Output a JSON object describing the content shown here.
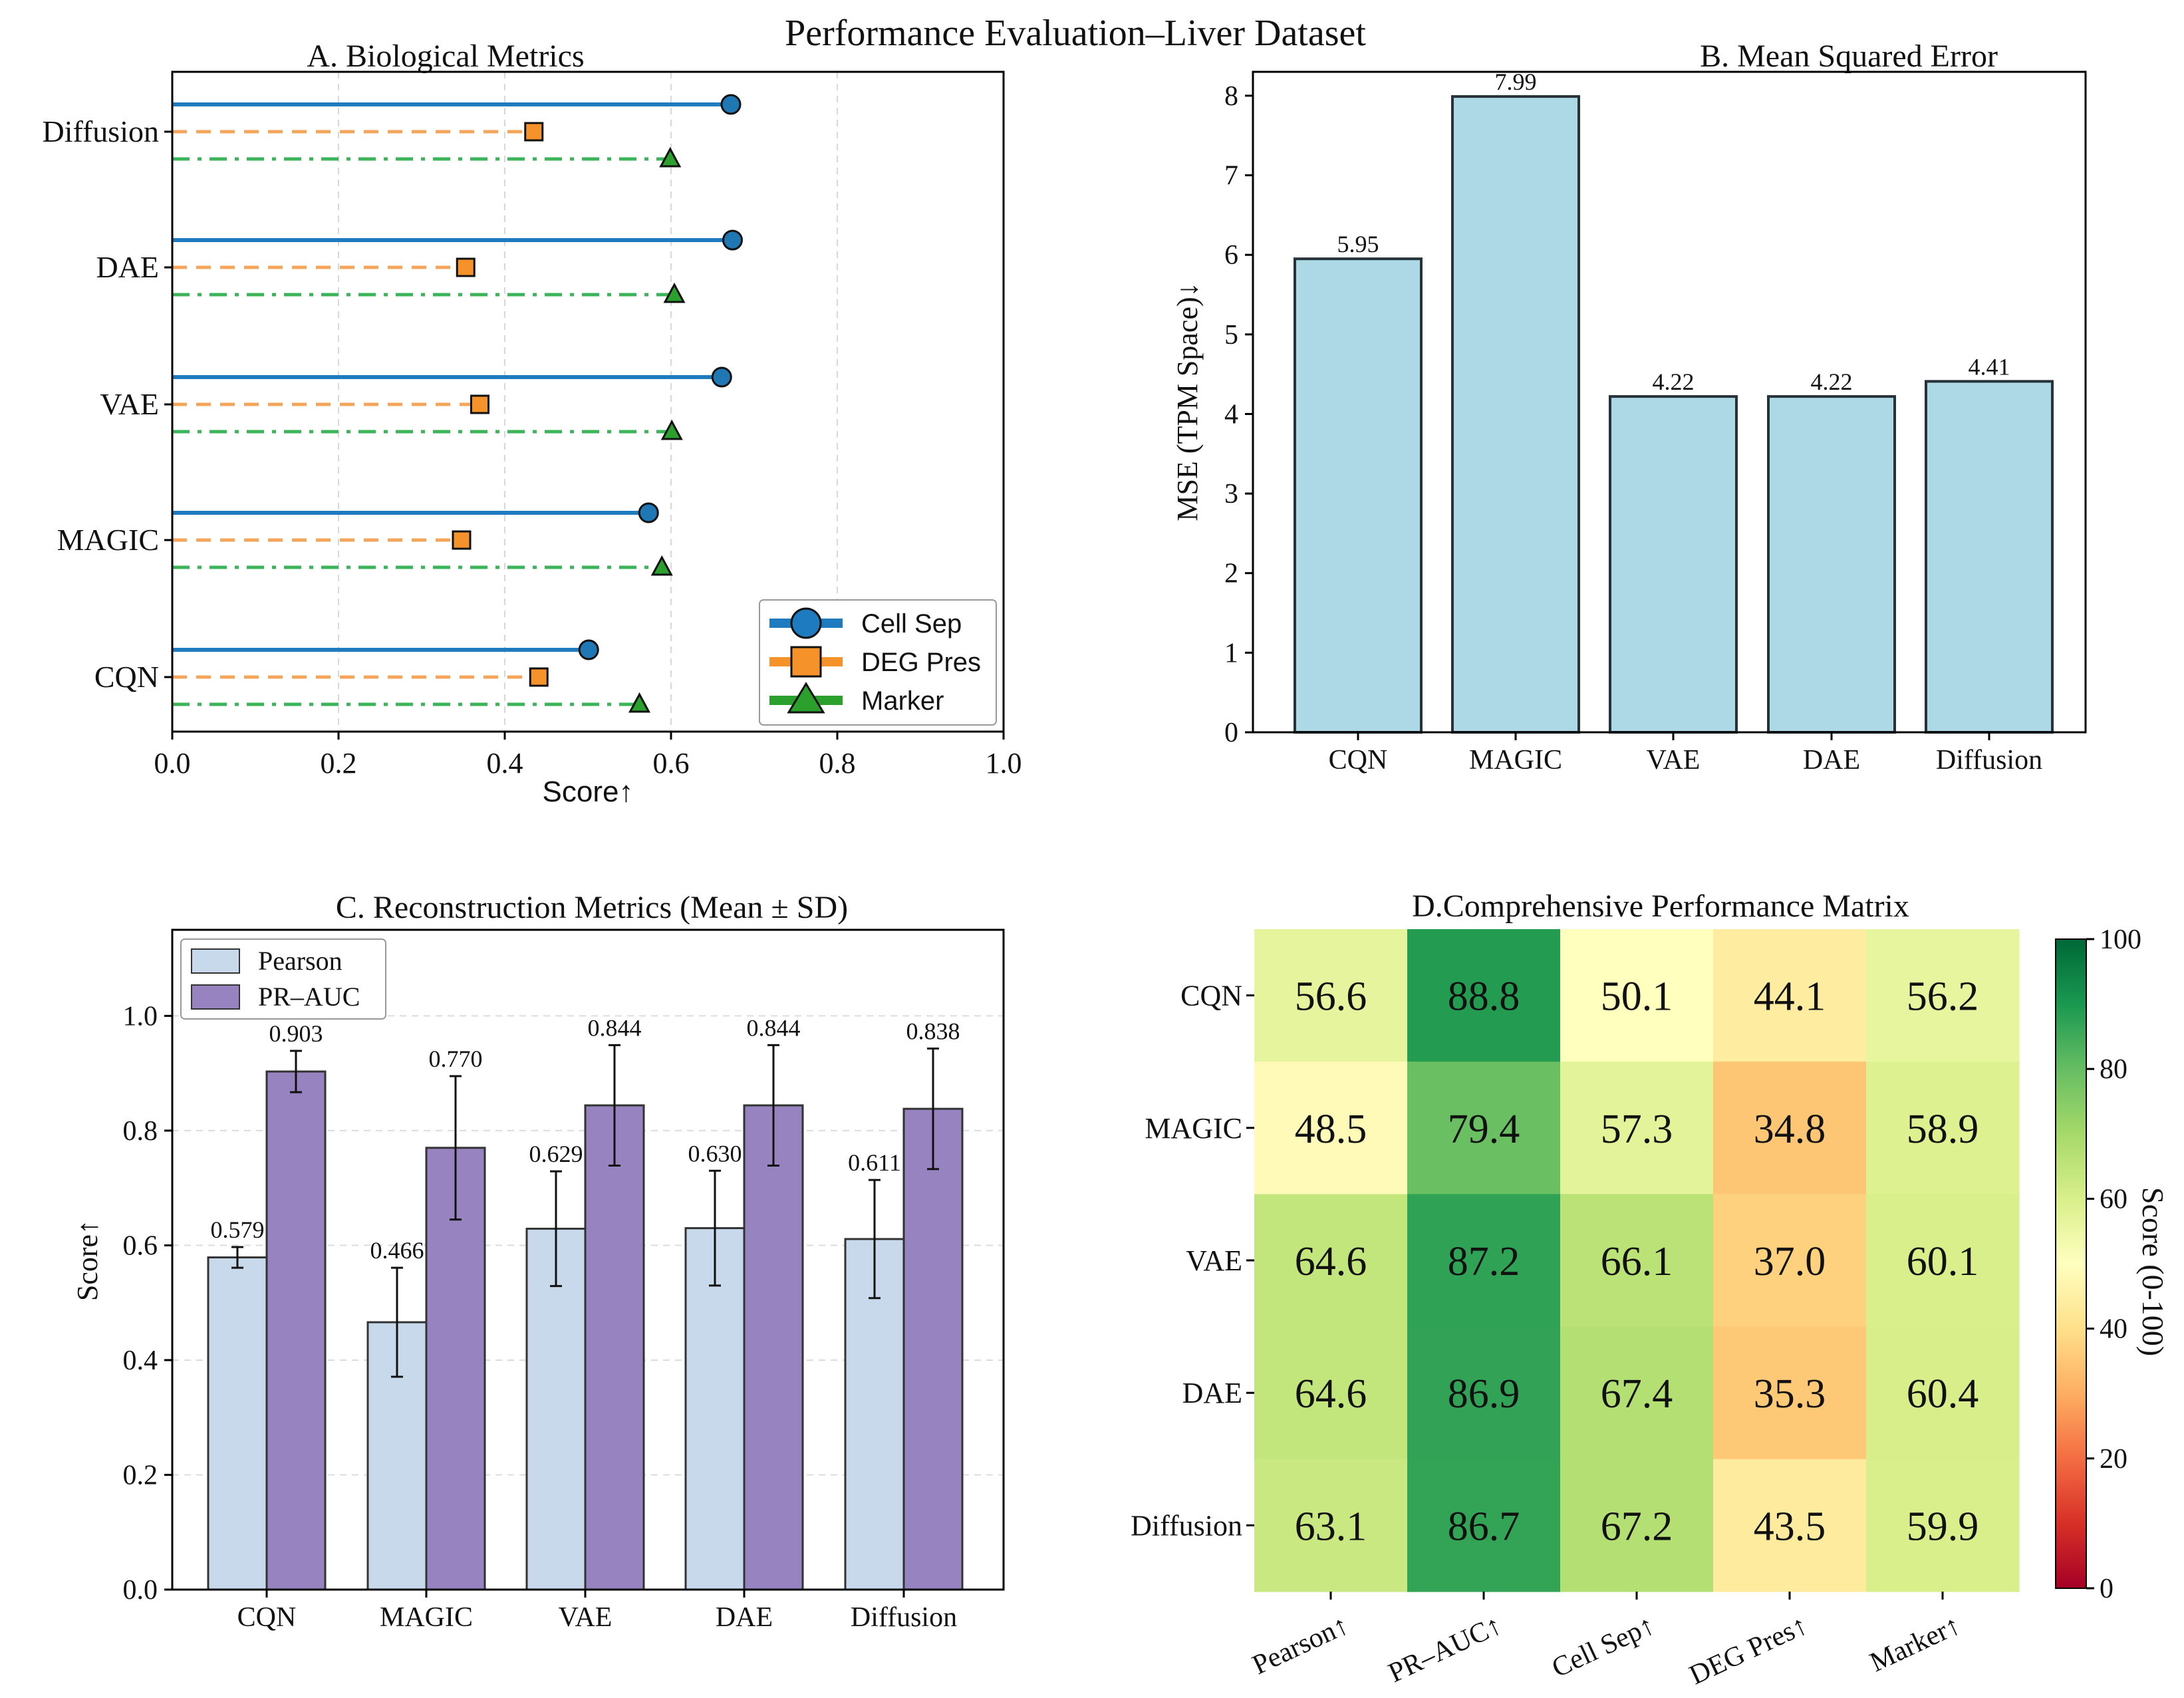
{
  "figure_title": "Performance Evaluation–Liver Dataset",
  "chart_data": [
    {
      "panel": "A",
      "type": "lollipop",
      "title": "A. Biological Metrics",
      "xlabel": "Score↑",
      "ylabel": "",
      "xlim": [
        0.0,
        1.0
      ],
      "xticks": [
        "0.0",
        "0.2",
        "0.4",
        "0.6",
        "0.8",
        "1.0"
      ],
      "grid": true,
      "categories": [
        "CQN",
        "MAGIC",
        "VAE",
        "DAE",
        "Diffusion"
      ],
      "series": [
        {
          "name": "Cell Sep",
          "color": "#1f7bbf",
          "values": [
            0.501,
            0.573,
            0.661,
            0.674,
            0.672
          ]
        },
        {
          "name": "DEG Pres",
          "color": "#f5a55a",
          "values": [
            0.441,
            0.348,
            0.37,
            0.353,
            0.435
          ]
        },
        {
          "name": "Marker",
          "color": "#3cb55a",
          "values": [
            0.562,
            0.589,
            0.601,
            0.604,
            0.599
          ]
        }
      ],
      "legend": "lower-right"
    },
    {
      "panel": "B",
      "type": "bar",
      "title": "B. Mean Squared Error",
      "xlabel": "",
      "ylabel": "MSE (TPM Space)↓",
      "ylim": [
        0,
        8.3
      ],
      "yticks": [
        "0",
        "1",
        "2",
        "3",
        "4",
        "5",
        "6",
        "7",
        "8"
      ],
      "color": "#add8e6",
      "categories": [
        "CQN",
        "MAGIC",
        "VAE",
        "DAE",
        "Diffusion"
      ],
      "values": [
        5.95,
        7.99,
        4.22,
        4.22,
        4.41
      ],
      "value_labels": [
        "5.95",
        "7.99",
        "4.22",
        "4.22",
        "4.41"
      ]
    },
    {
      "panel": "C",
      "type": "bar",
      "title": "C. Reconstruction Metrics (Mean ± SD)",
      "xlabel": "",
      "ylabel": "Score↑",
      "ylim": [
        0.0,
        1.15
      ],
      "yticks": [
        "0.0",
        "0.2",
        "0.4",
        "0.6",
        "0.8",
        "1.0"
      ],
      "grid": true,
      "categories": [
        "CQN",
        "MAGIC",
        "VAE",
        "DAE",
        "Diffusion"
      ],
      "series": [
        {
          "name": "Pearson",
          "color": "#c8d9ec",
          "values": [
            0.579,
            0.466,
            0.629,
            0.63,
            0.611
          ],
          "sd": [
            0.018,
            0.095,
            0.1,
            0.1,
            0.103
          ],
          "value_labels": [
            "0.579",
            "0.466",
            "0.629",
            "0.630",
            "0.611"
          ]
        },
        {
          "name": "PR–AUC",
          "color": "#9683c0",
          "values": [
            0.903,
            0.77,
            0.844,
            0.844,
            0.838
          ],
          "sd": [
            0.036,
            0.125,
            0.105,
            0.105,
            0.105
          ],
          "value_labels": [
            "0.903",
            "0.770",
            "0.844",
            "0.844",
            "0.838"
          ]
        }
      ],
      "legend": "top-left"
    },
    {
      "panel": "D",
      "type": "heatmap",
      "title": "D.Comprehensive Performance Matrix",
      "rows": [
        "CQN",
        "MAGIC",
        "VAE",
        "DAE",
        "Diffusion"
      ],
      "columns": [
        "Pearson↑",
        "PR–AUC↑",
        "Cell Sep↑",
        "DEG Pres↑",
        "Marker↑"
      ],
      "values": [
        [
          56.6,
          88.8,
          50.1,
          44.1,
          56.2
        ],
        [
          48.5,
          79.4,
          57.3,
          34.8,
          58.9
        ],
        [
          64.6,
          87.2,
          66.1,
          37.0,
          60.1
        ],
        [
          64.6,
          86.9,
          67.4,
          35.3,
          60.4
        ],
        [
          63.1,
          86.7,
          67.2,
          43.5,
          59.9
        ]
      ],
      "cell_labels": [
        [
          "56.6",
          "88.8",
          "50.1",
          "44.1",
          "56.2"
        ],
        [
          "48.5",
          "79.4",
          "57.3",
          "34.8",
          "58.9"
        ],
        [
          "64.6",
          "87.2",
          "66.1",
          "37.0",
          "60.1"
        ],
        [
          "64.6",
          "86.9",
          "67.4",
          "35.3",
          "60.4"
        ],
        [
          "63.1",
          "86.7",
          "67.2",
          "43.5",
          "59.9"
        ]
      ],
      "colormap": "RdYlGn",
      "vmin": 0,
      "vmax": 100,
      "colorbar_label": "Score (0-100)",
      "colorbar_ticks": [
        "0",
        "20",
        "40",
        "60",
        "80",
        "100"
      ]
    }
  ]
}
